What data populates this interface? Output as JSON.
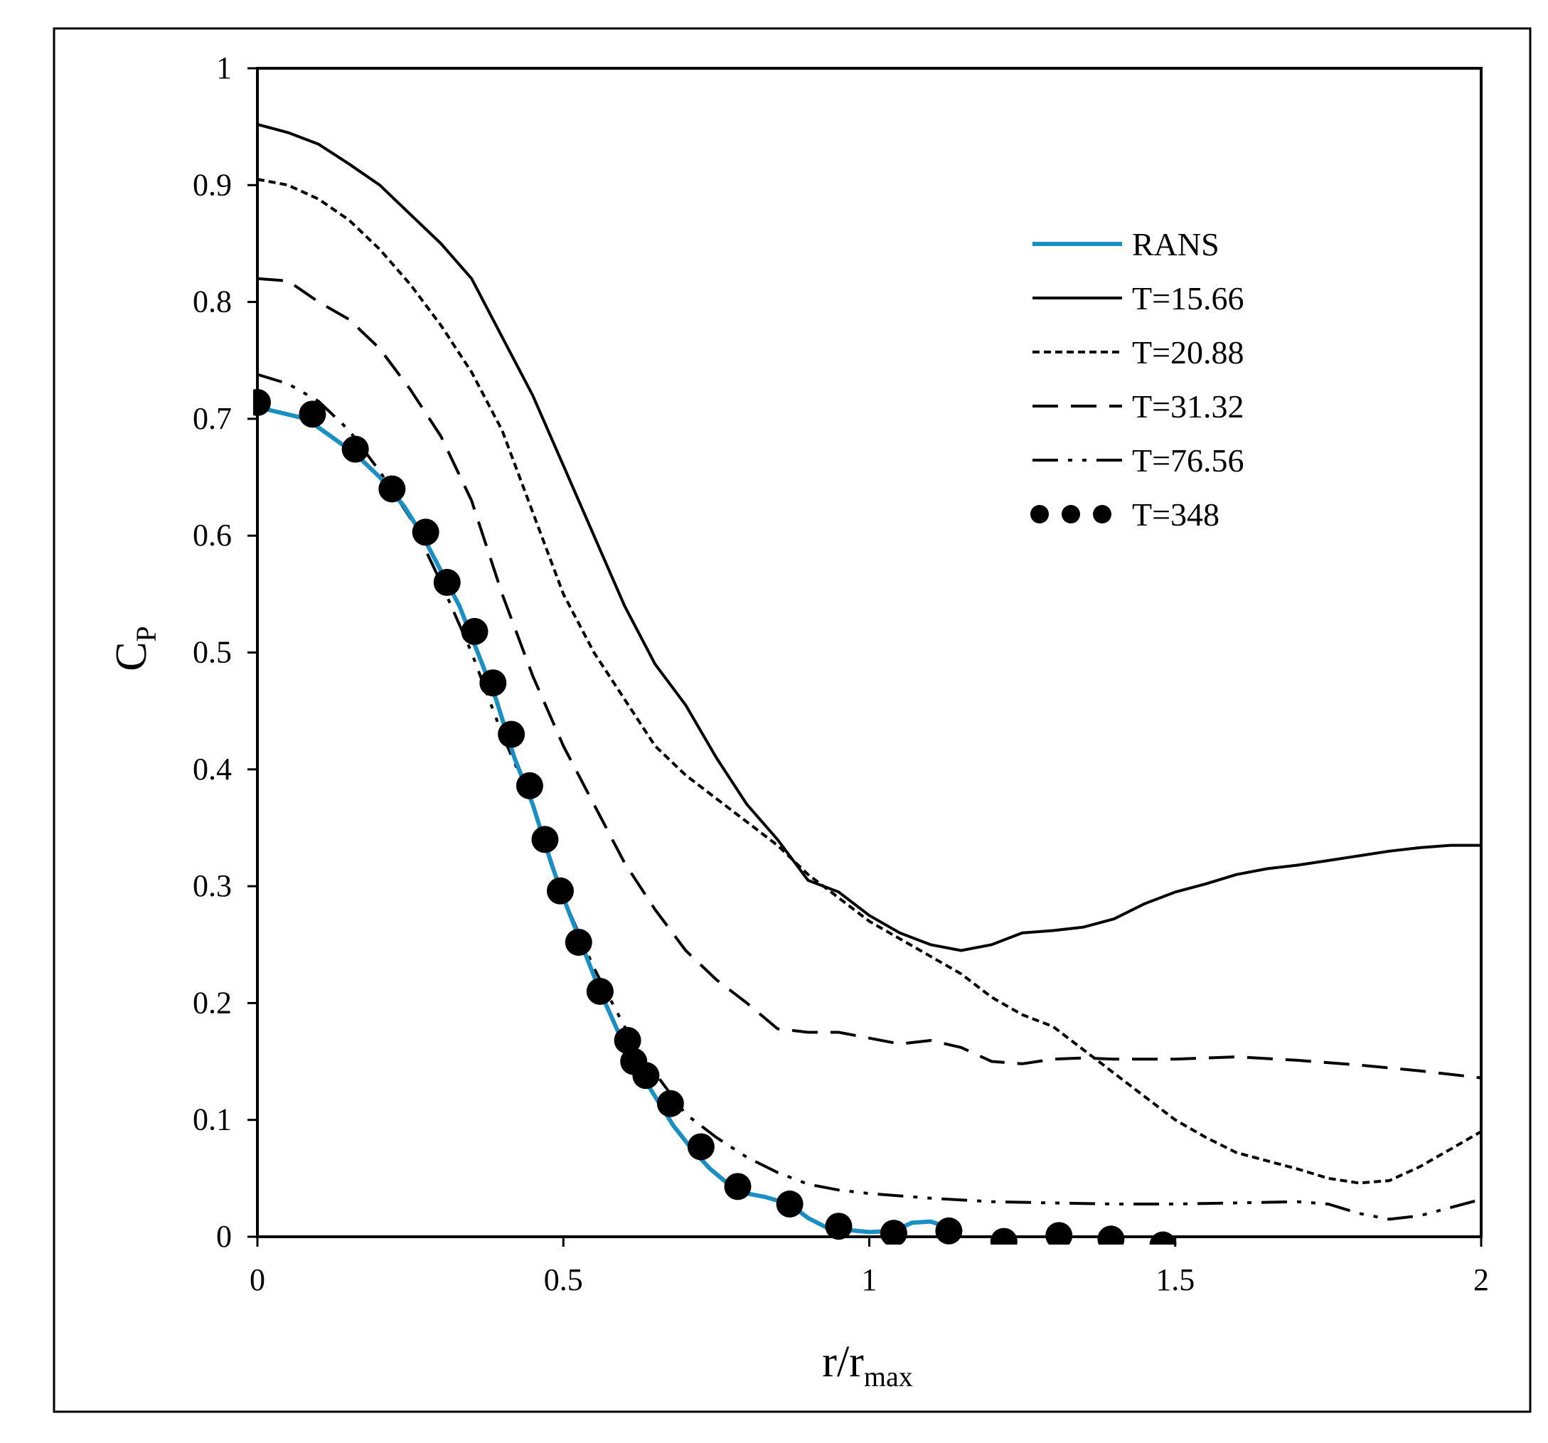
{
  "chart_data": {
    "type": "line",
    "title": "",
    "xlabel": {
      "main": "r/r",
      "sub": "max"
    },
    "ylabel": {
      "main": "C",
      "sub": "P"
    },
    "xlim": [
      0,
      2
    ],
    "ylim": [
      0,
      1
    ],
    "x_ticks": [
      0,
      0.5,
      1,
      1.5,
      2
    ],
    "x_tick_labels": [
      "0",
      "0.5",
      "1",
      "1.5",
      "2"
    ],
    "y_ticks": [
      0,
      0.1,
      0.2,
      0.3,
      0.4,
      0.5,
      0.6,
      0.7,
      0.8,
      0.9,
      1
    ],
    "y_tick_labels": [
      "0",
      "0.1",
      "0.2",
      "0.3",
      "0.4",
      "0.5",
      "0.6",
      "0.7",
      "0.8",
      "0.9",
      "1"
    ],
    "grid": false,
    "legend_position": "top-right",
    "colors": {
      "rans": "#1a8fc4",
      "black": "#000000",
      "axis": "#000000",
      "frame": "#000000"
    },
    "series": [
      {
        "name": "RANS",
        "style": "rans",
        "points": [
          [
            0,
            0.71
          ],
          [
            0.04,
            0.705
          ],
          [
            0.08,
            0.7
          ],
          [
            0.12,
            0.685
          ],
          [
            0.16,
            0.67
          ],
          [
            0.2,
            0.65
          ],
          [
            0.24,
            0.625
          ],
          [
            0.27,
            0.6
          ],
          [
            0.3,
            0.57
          ],
          [
            0.33,
            0.54
          ],
          [
            0.36,
            0.5
          ],
          [
            0.39,
            0.46
          ],
          [
            0.42,
            0.41
          ],
          [
            0.45,
            0.37
          ],
          [
            0.48,
            0.32
          ],
          [
            0.5,
            0.29
          ],
          [
            0.53,
            0.25
          ],
          [
            0.56,
            0.21
          ],
          [
            0.59,
            0.175
          ],
          [
            0.62,
            0.145
          ],
          [
            0.65,
            0.12
          ],
          [
            0.68,
            0.095
          ],
          [
            0.71,
            0.075
          ],
          [
            0.74,
            0.058
          ],
          [
            0.77,
            0.045
          ],
          [
            0.8,
            0.037
          ],
          [
            0.83,
            0.034
          ],
          [
            0.87,
            0.028
          ],
          [
            0.9,
            0.016
          ],
          [
            0.93,
            0.008
          ],
          [
            0.96,
            0.006
          ],
          [
            1.0,
            0.004
          ],
          [
            1.04,
            0.005
          ],
          [
            1.07,
            0.012
          ],
          [
            1.1,
            0.013
          ],
          [
            1.13,
            0.008
          ]
        ]
      },
      {
        "name": "T=15.66",
        "style": "solid",
        "points": [
          [
            0,
            0.952
          ],
          [
            0.05,
            0.945
          ],
          [
            0.1,
            0.935
          ],
          [
            0.15,
            0.918
          ],
          [
            0.2,
            0.9
          ],
          [
            0.25,
            0.875
          ],
          [
            0.3,
            0.85
          ],
          [
            0.35,
            0.82
          ],
          [
            0.4,
            0.77
          ],
          [
            0.45,
            0.72
          ],
          [
            0.5,
            0.66
          ],
          [
            0.55,
            0.6
          ],
          [
            0.6,
            0.54
          ],
          [
            0.65,
            0.49
          ],
          [
            0.7,
            0.455
          ],
          [
            0.75,
            0.41
          ],
          [
            0.8,
            0.37
          ],
          [
            0.85,
            0.34
          ],
          [
            0.9,
            0.305
          ],
          [
            0.95,
            0.295
          ],
          [
            1.0,
            0.275
          ],
          [
            1.05,
            0.26
          ],
          [
            1.1,
            0.25
          ],
          [
            1.15,
            0.245
          ],
          [
            1.2,
            0.25
          ],
          [
            1.25,
            0.26
          ],
          [
            1.3,
            0.262
          ],
          [
            1.35,
            0.265
          ],
          [
            1.4,
            0.272
          ],
          [
            1.45,
            0.285
          ],
          [
            1.5,
            0.295
          ],
          [
            1.55,
            0.302
          ],
          [
            1.6,
            0.31
          ],
          [
            1.65,
            0.315
          ],
          [
            1.7,
            0.318
          ],
          [
            1.75,
            0.322
          ],
          [
            1.8,
            0.326
          ],
          [
            1.85,
            0.33
          ],
          [
            1.9,
            0.333
          ],
          [
            1.95,
            0.335
          ],
          [
            2.0,
            0.335
          ]
        ]
      },
      {
        "name": "T=20.88",
        "style": "dotted",
        "points": [
          [
            0,
            0.905
          ],
          [
            0.05,
            0.9
          ],
          [
            0.1,
            0.888
          ],
          [
            0.15,
            0.87
          ],
          [
            0.2,
            0.845
          ],
          [
            0.25,
            0.815
          ],
          [
            0.3,
            0.78
          ],
          [
            0.35,
            0.74
          ],
          [
            0.4,
            0.69
          ],
          [
            0.45,
            0.62
          ],
          [
            0.5,
            0.55
          ],
          [
            0.55,
            0.5
          ],
          [
            0.6,
            0.46
          ],
          [
            0.65,
            0.42
          ],
          [
            0.7,
            0.395
          ],
          [
            0.75,
            0.375
          ],
          [
            0.8,
            0.355
          ],
          [
            0.85,
            0.335
          ],
          [
            0.9,
            0.31
          ],
          [
            0.95,
            0.29
          ],
          [
            1.0,
            0.27
          ],
          [
            1.05,
            0.255
          ],
          [
            1.1,
            0.24
          ],
          [
            1.15,
            0.225
          ],
          [
            1.2,
            0.205
          ],
          [
            1.25,
            0.19
          ],
          [
            1.3,
            0.18
          ],
          [
            1.35,
            0.16
          ],
          [
            1.4,
            0.14
          ],
          [
            1.45,
            0.12
          ],
          [
            1.5,
            0.1
          ],
          [
            1.55,
            0.085
          ],
          [
            1.6,
            0.072
          ],
          [
            1.65,
            0.065
          ],
          [
            1.7,
            0.058
          ],
          [
            1.75,
            0.05
          ],
          [
            1.8,
            0.046
          ],
          [
            1.85,
            0.048
          ],
          [
            1.9,
            0.06
          ],
          [
            1.95,
            0.075
          ],
          [
            2.0,
            0.09
          ]
        ]
      },
      {
        "name": "T=31.32",
        "style": "dashed",
        "points": [
          [
            0,
            0.82
          ],
          [
            0.05,
            0.818
          ],
          [
            0.1,
            0.8
          ],
          [
            0.15,
            0.785
          ],
          [
            0.2,
            0.76
          ],
          [
            0.25,
            0.725
          ],
          [
            0.3,
            0.685
          ],
          [
            0.35,
            0.63
          ],
          [
            0.4,
            0.55
          ],
          [
            0.45,
            0.48
          ],
          [
            0.5,
            0.42
          ],
          [
            0.55,
            0.37
          ],
          [
            0.6,
            0.32
          ],
          [
            0.65,
            0.28
          ],
          [
            0.7,
            0.245
          ],
          [
            0.75,
            0.22
          ],
          [
            0.8,
            0.2
          ],
          [
            0.85,
            0.178
          ],
          [
            0.9,
            0.175
          ],
          [
            0.95,
            0.175
          ],
          [
            1.0,
            0.17
          ],
          [
            1.05,
            0.165
          ],
          [
            1.1,
            0.168
          ],
          [
            1.15,
            0.162
          ],
          [
            1.2,
            0.15
          ],
          [
            1.25,
            0.148
          ],
          [
            1.3,
            0.152
          ],
          [
            1.35,
            0.153
          ],
          [
            1.4,
            0.152
          ],
          [
            1.5,
            0.152
          ],
          [
            1.6,
            0.154
          ],
          [
            1.7,
            0.151
          ],
          [
            1.8,
            0.147
          ],
          [
            1.9,
            0.142
          ],
          [
            2.0,
            0.136
          ]
        ]
      },
      {
        "name": "T=76.56",
        "style": "dashdotdot",
        "points": [
          [
            0,
            0.738
          ],
          [
            0.05,
            0.73
          ],
          [
            0.1,
            0.715
          ],
          [
            0.15,
            0.69
          ],
          [
            0.2,
            0.655
          ],
          [
            0.25,
            0.615
          ],
          [
            0.3,
            0.56
          ],
          [
            0.35,
            0.5
          ],
          [
            0.4,
            0.43
          ],
          [
            0.45,
            0.37
          ],
          [
            0.5,
            0.29
          ],
          [
            0.55,
            0.23
          ],
          [
            0.6,
            0.18
          ],
          [
            0.65,
            0.14
          ],
          [
            0.7,
            0.105
          ],
          [
            0.75,
            0.085
          ],
          [
            0.8,
            0.068
          ],
          [
            0.85,
            0.055
          ],
          [
            0.9,
            0.045
          ],
          [
            0.95,
            0.04
          ],
          [
            1.0,
            0.037
          ],
          [
            1.1,
            0.033
          ],
          [
            1.2,
            0.03
          ],
          [
            1.3,
            0.029
          ],
          [
            1.4,
            0.028
          ],
          [
            1.5,
            0.028
          ],
          [
            1.6,
            0.029
          ],
          [
            1.7,
            0.03
          ],
          [
            1.75,
            0.028
          ],
          [
            1.8,
            0.02
          ],
          [
            1.85,
            0.015
          ],
          [
            1.9,
            0.018
          ],
          [
            1.95,
            0.025
          ],
          [
            2.0,
            0.032
          ]
        ]
      },
      {
        "name": "T=348",
        "style": "markers",
        "points": [
          [
            0,
            0.714
          ],
          [
            0.09,
            0.704
          ],
          [
            0.16,
            0.674
          ],
          [
            0.22,
            0.64
          ],
          [
            0.275,
            0.603
          ],
          [
            0.31,
            0.56
          ],
          [
            0.355,
            0.518
          ],
          [
            0.385,
            0.474
          ],
          [
            0.415,
            0.43
          ],
          [
            0.445,
            0.386
          ],
          [
            0.47,
            0.34
          ],
          [
            0.495,
            0.296
          ],
          [
            0.525,
            0.252
          ],
          [
            0.56,
            0.21
          ],
          [
            0.605,
            0.168
          ],
          [
            0.615,
            0.15
          ],
          [
            0.635,
            0.138
          ],
          [
            0.675,
            0.114
          ],
          [
            0.725,
            0.077
          ],
          [
            0.785,
            0.043
          ],
          [
            0.87,
            0.028
          ],
          [
            0.95,
            0.009
          ],
          [
            1.04,
            0.003
          ],
          [
            1.13,
            0.005
          ],
          [
            1.22,
            -0.004
          ],
          [
            1.31,
            0.001
          ],
          [
            1.395,
            -0.002
          ],
          [
            1.48,
            -0.007
          ]
        ]
      }
    ]
  }
}
